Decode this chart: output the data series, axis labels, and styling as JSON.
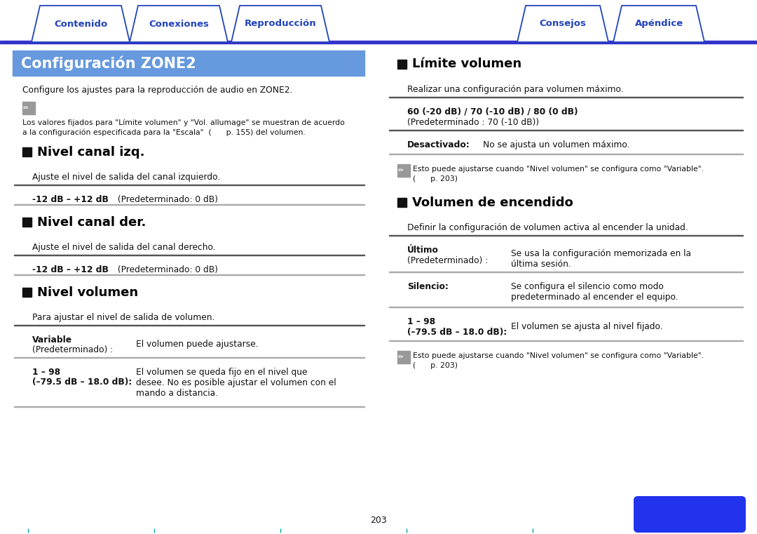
{
  "bg_color": "#ffffff",
  "nav_line_color": "#3333cc",
  "nav_tabs_left": [
    "Contenido",
    "Conexiones",
    "Reproducción"
  ],
  "nav_tabs_right": [
    "Consejos",
    "Apéndice"
  ],
  "blue_text_color": "#2244bb",
  "title_bg": "#6699dd",
  "title_text": "Configuración ZONE2",
  "title_text_color": "#ffffff",
  "section_color": "#000000",
  "body_text_color": "#111111",
  "rule_color_dark": "#555555",
  "rule_color_light": "#aaaaaa",
  "page_number": "203",
  "pencil_color": "#888888",
  "btn_color": "#2233ee",
  "cyan_tick_color": "#00aaaa"
}
